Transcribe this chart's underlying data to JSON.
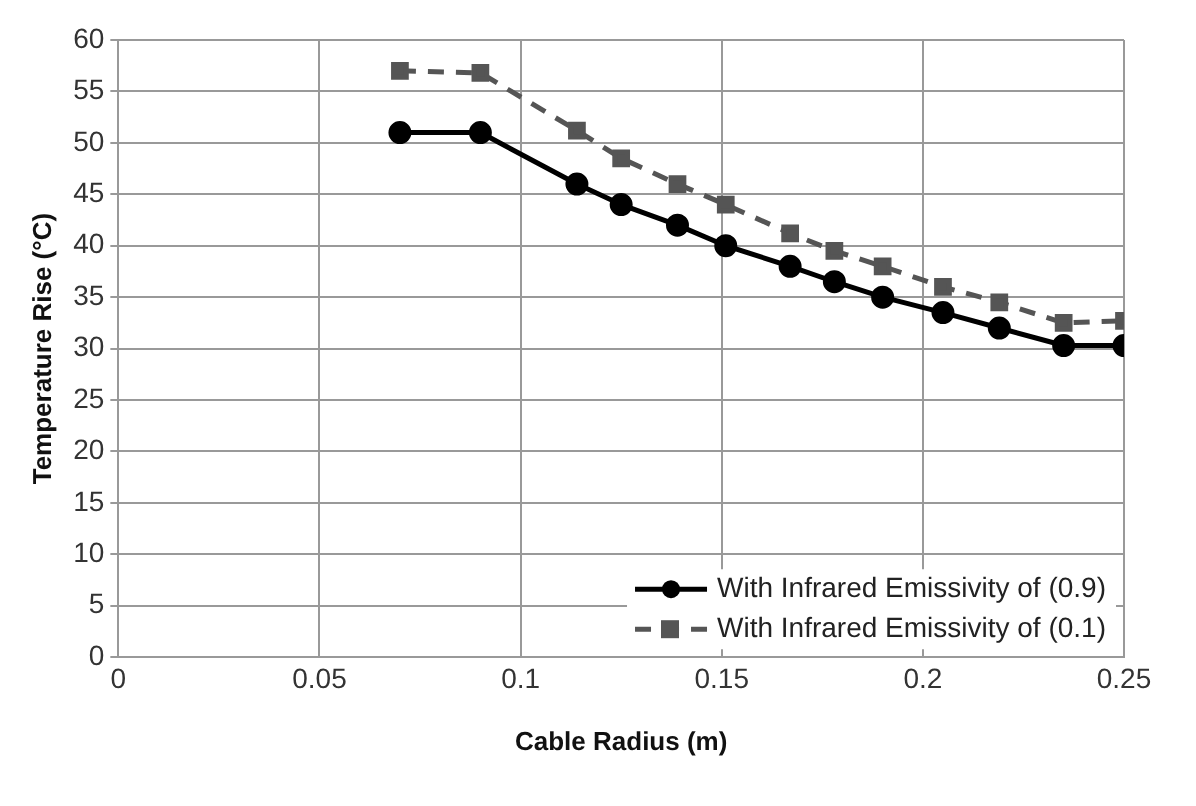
{
  "chart_data": {
    "type": "line",
    "xlabel": "Cable Radius (m)",
    "ylabel": "Temperature Rise (°C)",
    "x": [
      0.07,
      0.09,
      0.114,
      0.125,
      0.139,
      0.151,
      0.167,
      0.178,
      0.19,
      0.205,
      0.219,
      0.235,
      0.25
    ],
    "series": [
      {
        "name": "With Infrared Emissivity of (0.9)",
        "color": "#000000",
        "marker": "circle",
        "line_style": "solid",
        "values": [
          51,
          51,
          46,
          44,
          42,
          40,
          38,
          36.5,
          35,
          33.5,
          32,
          30.3,
          30.3
        ]
      },
      {
        "name": "With Infrared Emissivity of (0.1)",
        "color": "#555555",
        "marker": "square",
        "line_style": "dashed",
        "values": [
          57,
          56.8,
          51.2,
          48.5,
          46,
          44,
          41.2,
          39.5,
          38,
          36,
          34.5,
          32.5,
          32.7
        ]
      }
    ],
    "xlim": [
      0,
      0.25
    ],
    "xticks": [
      0,
      0.05,
      0.1,
      0.15,
      0.2,
      0.25
    ],
    "ylim": [
      0,
      60
    ],
    "yticks": [
      0,
      5,
      10,
      15,
      20,
      25,
      30,
      35,
      40,
      45,
      50,
      55,
      60
    ],
    "grid": true,
    "legend": "bottom right"
  }
}
